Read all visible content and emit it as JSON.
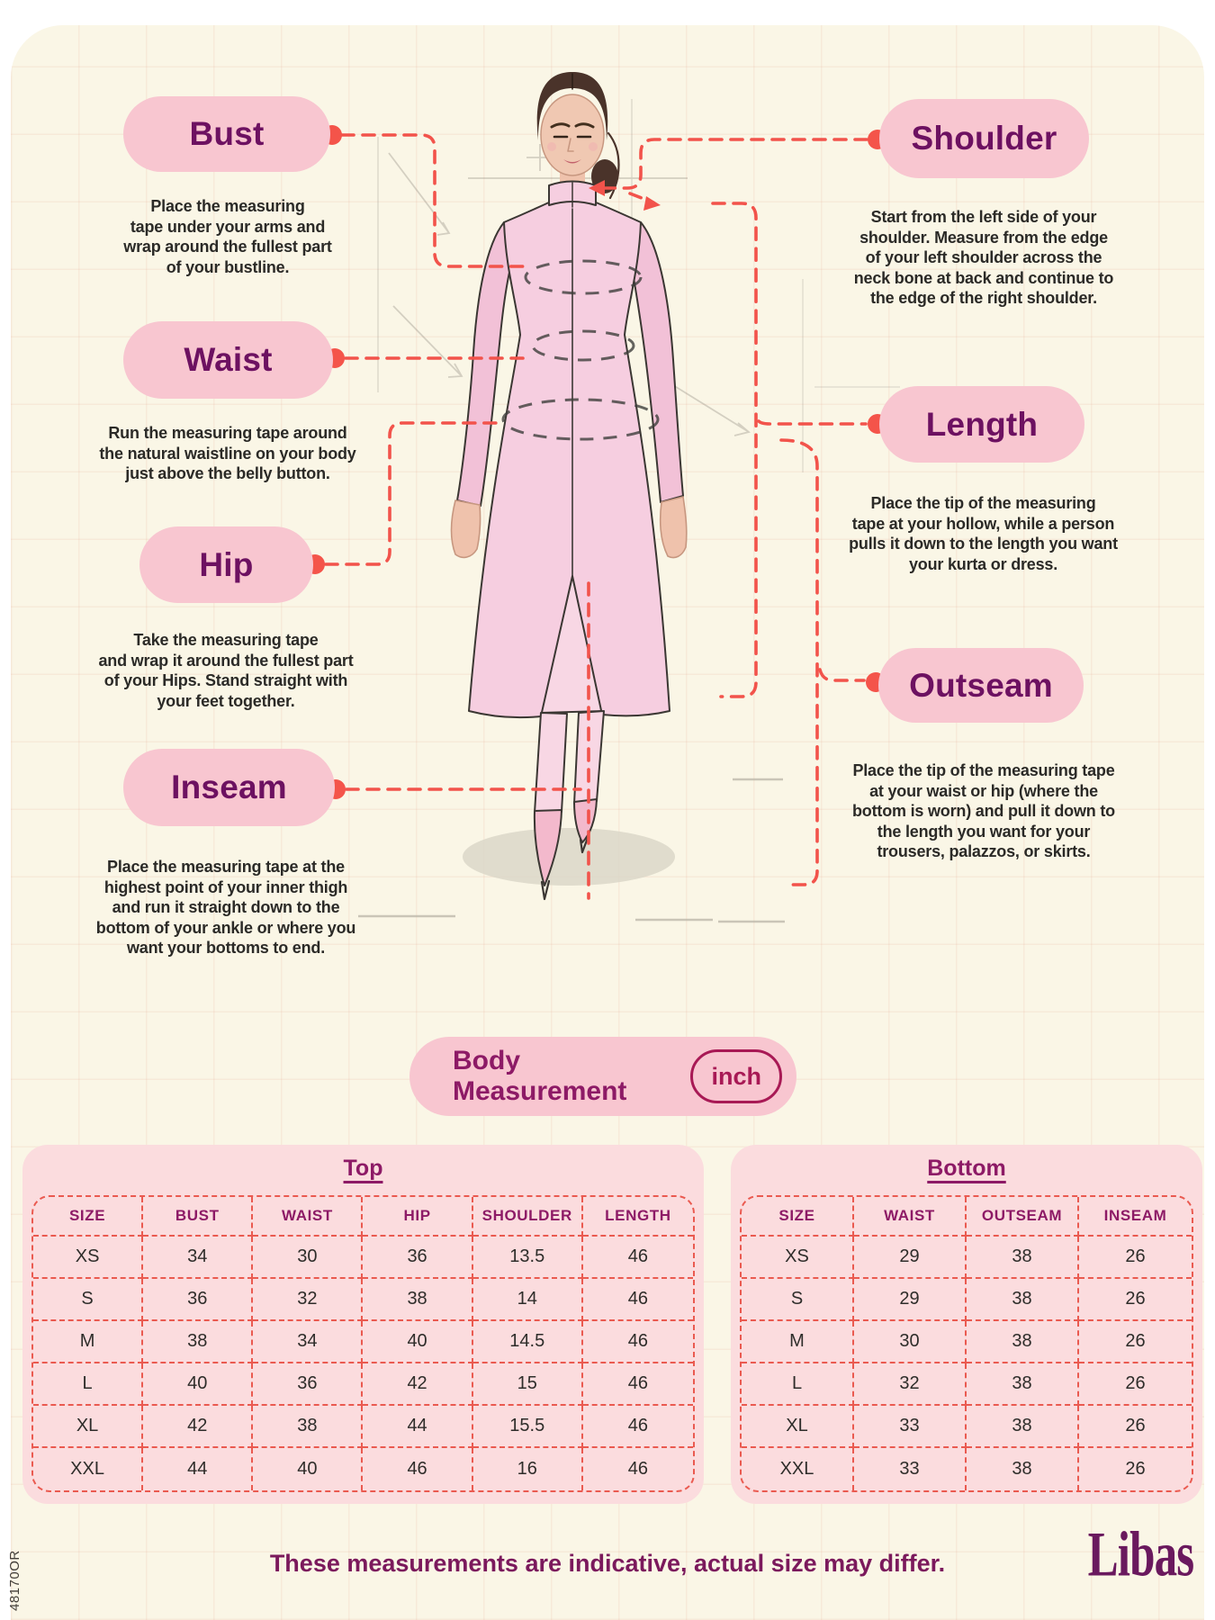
{
  "page": {
    "background": "#FAF6E6",
    "footer_note": "These measurements are indicative, actual size may differ.",
    "brand": "Libas",
    "side_code": "48170OR"
  },
  "measurement_pill": {
    "label": "Body Measurement",
    "unit": "inch"
  },
  "guides": [
    {
      "id": "bust",
      "label": "Bust",
      "side": "left",
      "description": "Place the measuring\ntape under your arms and\nwrap around the fullest part\nof your bustline."
    },
    {
      "id": "waist",
      "label": "Waist",
      "side": "left",
      "description": "Run the measuring tape around\nthe natural waistline on your body\njust above the belly button."
    },
    {
      "id": "hip",
      "label": "Hip",
      "side": "left",
      "description": "Take the measuring tape\nand wrap it around the fullest part\nof your Hips. Stand straight with\nyour feet together."
    },
    {
      "id": "inseam",
      "label": "Inseam",
      "side": "left",
      "description": "Place the measuring tape at the\nhighest point of your inner thigh\nand run it straight down to the\nbottom of your ankle or where you\nwant your bottoms to end."
    },
    {
      "id": "shoulder",
      "label": "Shoulder",
      "side": "right",
      "description": "Start from the left side of your\nshoulder. Measure from the edge\nof your left shoulder across the\nneck bone at back and continue to\nthe edge of the right shoulder."
    },
    {
      "id": "length",
      "label": "Length",
      "side": "right",
      "description": "Place the tip of the measuring\ntape at your hollow, while a person\npulls it down to the length you want\nyour kurta or dress."
    },
    {
      "id": "outseam",
      "label": "Outseam",
      "side": "right",
      "description": "Place the tip of the measuring tape\nat your waist or hip (where the\nbottom is worn) and pull it down to\nthe length you want for your\ntrousers, palazzos, or skirts."
    }
  ],
  "tables": {
    "top": {
      "title": "Top",
      "headers": [
        "SIZE",
        "BUST",
        "WAIST",
        "HIP",
        "SHOULDER",
        "LENGTH"
      ],
      "rows": [
        [
          "XS",
          "34",
          "30",
          "36",
          "13.5",
          "46"
        ],
        [
          "S",
          "36",
          "32",
          "38",
          "14",
          "46"
        ],
        [
          "M",
          "38",
          "34",
          "40",
          "14.5",
          "46"
        ],
        [
          "L",
          "40",
          "36",
          "42",
          "15",
          "46"
        ],
        [
          "XL",
          "42",
          "38",
          "44",
          "15.5",
          "46"
        ],
        [
          "XXL",
          "44",
          "40",
          "46",
          "16",
          "46"
        ]
      ]
    },
    "bottom": {
      "title": "Bottom",
      "headers": [
        "SIZE",
        "WAIST",
        "OUTSEAM",
        "INSEAM"
      ],
      "rows": [
        [
          "XS",
          "29",
          "38",
          "26"
        ],
        [
          "S",
          "29",
          "38",
          "26"
        ],
        [
          "M",
          "30",
          "38",
          "26"
        ],
        [
          "L",
          "32",
          "38",
          "26"
        ],
        [
          "XL",
          "33",
          "38",
          "26"
        ],
        [
          "XXL",
          "33",
          "38",
          "26"
        ]
      ]
    }
  },
  "colors": {
    "cream": "#FAF6E6",
    "pill_pink": "#F8C6D0",
    "card_pink": "#FBDCDE",
    "label_purple": "#6D1161",
    "header_magenta": "#8D1A66",
    "dash_red": "#EA5A50",
    "connector_red": "#F2534B",
    "chip_crimson": "#A81955",
    "footer_purple": "#7B195C",
    "brand_purple": "#6A195E"
  }
}
